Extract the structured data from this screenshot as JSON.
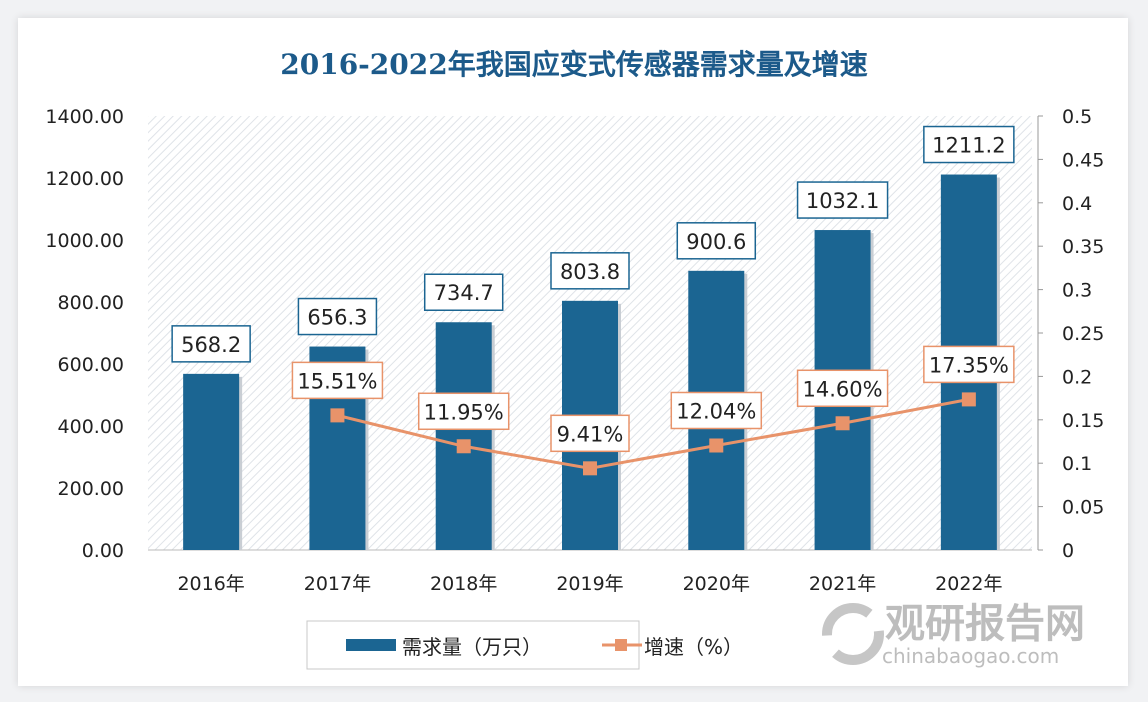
{
  "chart_data": {
    "type": "bar+line",
    "title": "2016-2022年我国应变式传感器需求量及增速",
    "categories": [
      "2016年",
      "2017年",
      "2018年",
      "2019年",
      "2020年",
      "2021年",
      "2022年"
    ],
    "series": [
      {
        "name": "需求量（万只）",
        "type": "bar",
        "axis": "left",
        "values": [
          568.2,
          656.3,
          734.7,
          803.8,
          900.6,
          1032.1,
          1211.2
        ],
        "labels": [
          "568.2",
          "656.3",
          "734.7",
          "803.8",
          "900.6",
          "1032.1",
          "1211.2"
        ],
        "color": "#1b6592"
      },
      {
        "name": "增速（%）",
        "type": "line",
        "axis": "right",
        "values": [
          null,
          0.1551,
          0.1195,
          0.0941,
          0.1204,
          0.146,
          0.1735
        ],
        "labels": [
          "",
          "15.51%",
          "11.95%",
          "9.41%",
          "12.04%",
          "14.60%",
          "17.35%"
        ],
        "color": "#e8936a"
      }
    ],
    "y_left": {
      "range": [
        0,
        1400
      ],
      "ticks": [
        "0.00",
        "200.00",
        "400.00",
        "600.00",
        "800.00",
        "1000.00",
        "1200.00",
        "1400.00"
      ]
    },
    "y_right": {
      "range": [
        0,
        0.5
      ],
      "ticks": [
        "0",
        "0.05",
        "0.1",
        "0.15",
        "0.2",
        "0.25",
        "0.3",
        "0.35",
        "0.4",
        "0.45",
        "0.5"
      ]
    },
    "legend": "bottom",
    "grid": false
  },
  "watermark": {
    "name": "观研报告网",
    "url": "chinabaogao.com"
  }
}
